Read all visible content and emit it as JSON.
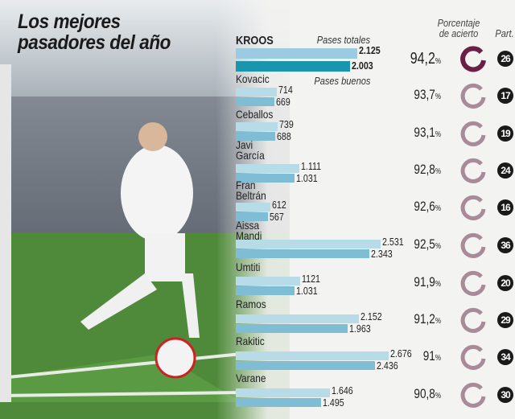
{
  "title_line1": "Los mejores",
  "title_line2": "pasadores del año",
  "headers": {
    "total": "Pases totales",
    "good": "Pases buenos",
    "pct": "Porcentaje",
    "pct2": "de acierto",
    "part": "Part."
  },
  "colors": {
    "total_bar": "#b8dbe8",
    "good_bar": "#7fbdd5",
    "kroos_total": "#9acbe0",
    "kroos_good": "#1995ad",
    "ring_top": "#6b1f45",
    "ring": "#a98a99"
  },
  "chart_data": {
    "type": "bar",
    "title": "Los mejores pasadores del año",
    "series": [
      {
        "name": "Pases totales"
      },
      {
        "name": "Pases buenos"
      }
    ],
    "players": [
      {
        "name": "KROOS",
        "total": 2125,
        "good": 2003,
        "total_label": "2.125",
        "good_label": "2.003",
        "pct": 94.2,
        "pct_label": "94,2",
        "part": 26
      },
      {
        "name": "Kovacic",
        "total": 714,
        "good": 669,
        "total_label": "714",
        "good_label": "669",
        "pct": 93.7,
        "pct_label": "93,7",
        "part": 17
      },
      {
        "name": "Ceballos",
        "total": 739,
        "good": 688,
        "total_label": "739",
        "good_label": "688",
        "pct": 93.1,
        "pct_label": "93,1",
        "part": 19
      },
      {
        "name": "Javi García",
        "total": 1111,
        "good": 1031,
        "total_label": "1.111",
        "good_label": "1.031",
        "pct": 92.8,
        "pct_label": "92,8",
        "part": 24
      },
      {
        "name": "Fran Beltrán",
        "total": 612,
        "good": 567,
        "total_label": "612",
        "good_label": "567",
        "pct": 92.6,
        "pct_label": "92,6",
        "part": 16
      },
      {
        "name": "Aissa Mandi",
        "total": 2531,
        "good": 2343,
        "total_label": "2.531",
        "good_label": "2.343",
        "pct": 92.5,
        "pct_label": "92,5",
        "part": 36
      },
      {
        "name": "Umtiti",
        "total": 1121,
        "good": 1031,
        "total_label": "1121",
        "good_label": "1.031",
        "pct": 91.9,
        "pct_label": "91,9",
        "part": 20
      },
      {
        "name": "Ramos",
        "total": 2152,
        "good": 1963,
        "total_label": "2.152",
        "good_label": "1.963",
        "pct": 91.2,
        "pct_label": "91,2",
        "part": 29
      },
      {
        "name": "Rakitic",
        "total": 2676,
        "good": 2436,
        "total_label": "2.676",
        "good_label": "2.436",
        "pct": 91,
        "pct_label": "91",
        "part": 34
      },
      {
        "name": "Varane",
        "total": 1646,
        "good": 1495,
        "total_label": "1.646",
        "good_label": "1.495",
        "pct": 90.8,
        "pct_label": "90,8",
        "part": 30
      }
    ]
  }
}
